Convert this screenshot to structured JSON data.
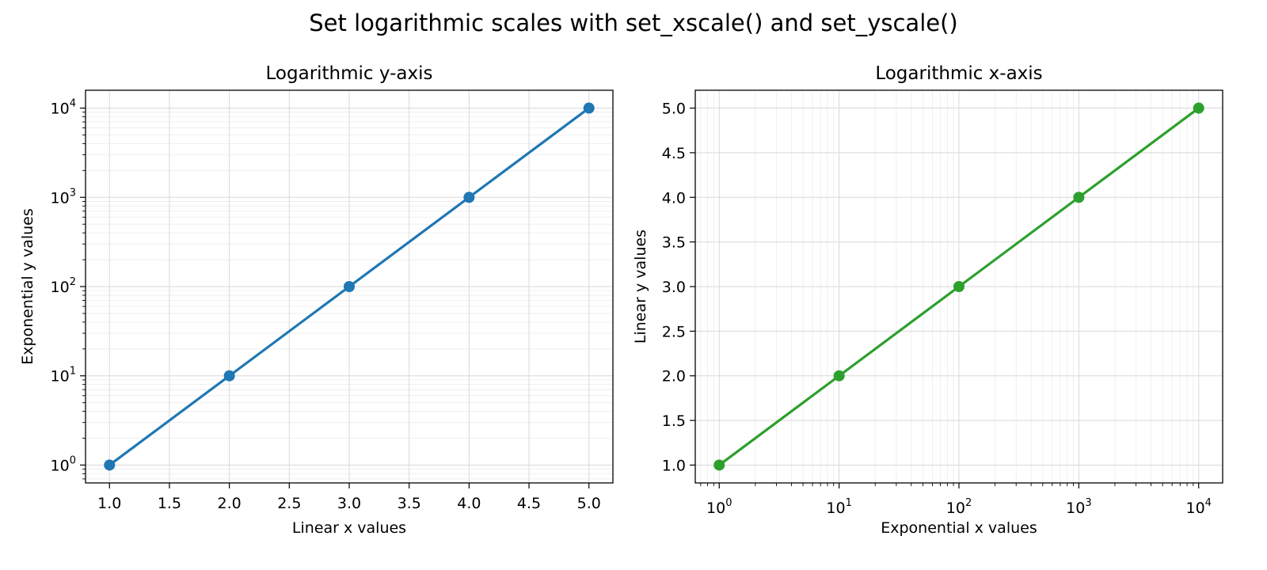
{
  "figure": {
    "suptitle": "Set logarithmic scales with set_xscale() and set_yscale()"
  },
  "chart_data": [
    {
      "type": "line",
      "title": "Logarithmic y-axis",
      "xlabel": "Linear x values",
      "ylabel": "Exponential y values",
      "xscale": "linear",
      "yscale": "log",
      "xlim": [
        0.8,
        5.2
      ],
      "ylim": [
        0.631,
        15849
      ],
      "xticks": [
        1.0,
        1.5,
        2.0,
        2.5,
        3.0,
        3.5,
        4.0,
        4.5,
        5.0
      ],
      "xtick_labels": [
        "1.0",
        "1.5",
        "2.0",
        "2.5",
        "3.0",
        "3.5",
        "4.0",
        "4.5",
        "5.0"
      ],
      "yticks": [
        1,
        10,
        100,
        1000,
        10000
      ],
      "ytick_labels": [
        {
          "base": "10",
          "exp": "0"
        },
        {
          "base": "10",
          "exp": "1"
        },
        {
          "base": "10",
          "exp": "2"
        },
        {
          "base": "10",
          "exp": "3"
        },
        {
          "base": "10",
          "exp": "4"
        }
      ],
      "grid": true,
      "series": [
        {
          "x": [
            1,
            2,
            3,
            4,
            5
          ],
          "y": [
            1,
            10,
            100,
            1000,
            10000
          ],
          "color": "#1f77b4",
          "marker": "circle"
        }
      ]
    },
    {
      "type": "line",
      "title": "Logarithmic x-axis",
      "xlabel": "Exponential x values",
      "ylabel": "Linear y values",
      "xscale": "log",
      "yscale": "linear",
      "xlim": [
        0.631,
        15849
      ],
      "ylim": [
        0.8,
        5.2
      ],
      "xticks": [
        1,
        10,
        100,
        1000,
        10000
      ],
      "xtick_labels": [
        {
          "base": "10",
          "exp": "0"
        },
        {
          "base": "10",
          "exp": "1"
        },
        {
          "base": "10",
          "exp": "2"
        },
        {
          "base": "10",
          "exp": "3"
        },
        {
          "base": "10",
          "exp": "4"
        }
      ],
      "yticks": [
        1.0,
        1.5,
        2.0,
        2.5,
        3.0,
        3.5,
        4.0,
        4.5,
        5.0
      ],
      "ytick_labels": [
        "1.0",
        "1.5",
        "2.0",
        "2.5",
        "3.0",
        "3.5",
        "4.0",
        "4.5",
        "5.0"
      ],
      "grid": true,
      "series": [
        {
          "x": [
            1,
            10,
            100,
            1000,
            10000
          ],
          "y": [
            1,
            2,
            3,
            4,
            5
          ],
          "color": "#2ca02c",
          "marker": "circle"
        }
      ]
    }
  ]
}
